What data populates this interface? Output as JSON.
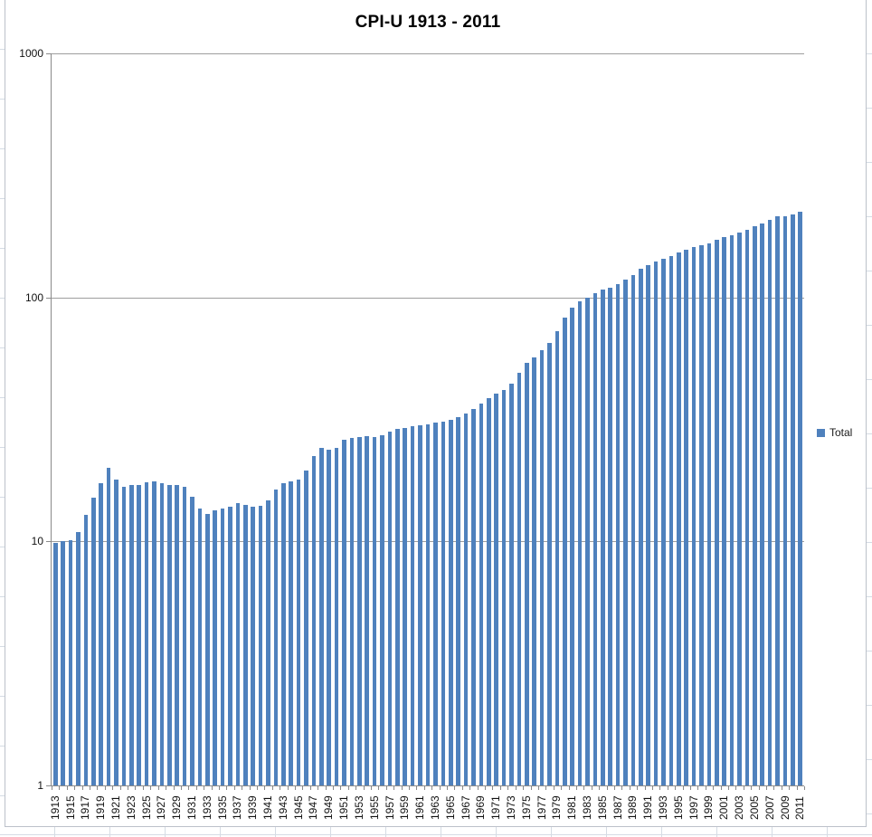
{
  "chart_data": {
    "type": "bar",
    "title": "CPI-U 1913 - 2011",
    "yscale": "log",
    "ylim": [
      1,
      1000
    ],
    "yticks": [
      1,
      10,
      100,
      1000
    ],
    "grid": true,
    "legend_position": "right",
    "bar_color": "#4F81BD",
    "xtick_label_step": 2,
    "categories": [
      1913,
      1914,
      1915,
      1916,
      1917,
      1918,
      1919,
      1920,
      1921,
      1922,
      1923,
      1924,
      1925,
      1926,
      1927,
      1928,
      1929,
      1930,
      1931,
      1932,
      1933,
      1934,
      1935,
      1936,
      1937,
      1938,
      1939,
      1940,
      1941,
      1942,
      1943,
      1944,
      1945,
      1946,
      1947,
      1948,
      1949,
      1950,
      1951,
      1952,
      1953,
      1954,
      1955,
      1956,
      1957,
      1958,
      1959,
      1960,
      1961,
      1962,
      1963,
      1964,
      1965,
      1966,
      1967,
      1968,
      1969,
      1970,
      1971,
      1972,
      1973,
      1974,
      1975,
      1976,
      1977,
      1978,
      1979,
      1980,
      1981,
      1982,
      1983,
      1984,
      1985,
      1986,
      1987,
      1988,
      1989,
      1990,
      1991,
      1992,
      1993,
      1994,
      1995,
      1996,
      1997,
      1998,
      1999,
      2000,
      2001,
      2002,
      2003,
      2004,
      2005,
      2006,
      2007,
      2008,
      2009,
      2010,
      2011
    ],
    "series": [
      {
        "name": "Total",
        "values": [
          9.9,
          10.0,
          10.1,
          10.9,
          12.8,
          15.1,
          17.3,
          20.0,
          17.9,
          16.8,
          17.1,
          17.1,
          17.5,
          17.7,
          17.4,
          17.1,
          17.1,
          16.7,
          15.2,
          13.7,
          13.0,
          13.4,
          13.7,
          13.9,
          14.4,
          14.1,
          13.9,
          14.0,
          14.7,
          16.3,
          17.3,
          17.6,
          18.0,
          19.5,
          22.3,
          24.1,
          23.8,
          24.1,
          26.0,
          26.5,
          26.7,
          26.9,
          26.8,
          27.2,
          28.1,
          28.9,
          29.1,
          29.6,
          29.9,
          30.2,
          30.6,
          31.0,
          31.5,
          32.4,
          33.4,
          34.8,
          36.7,
          38.8,
          40.5,
          41.8,
          44.4,
          49.3,
          53.8,
          56.9,
          60.6,
          65.2,
          72.6,
          82.4,
          90.9,
          96.5,
          99.6,
          103.9,
          107.6,
          109.6,
          113.6,
          118.3,
          124.0,
          130.7,
          136.2,
          140.3,
          144.5,
          148.2,
          152.4,
          156.9,
          160.5,
          163.0,
          166.6,
          172.2,
          177.1,
          179.9,
          184.0,
          188.9,
          195.3,
          201.6,
          207.3,
          215.3,
          214.5,
          218.1,
          224.9
        ]
      }
    ]
  },
  "colors": {
    "bar": "#4F81BD",
    "gridline": "#9d9d9d",
    "axis": "#8a8a8a",
    "chart_border": "#bcc1ca",
    "sheet_gridline": "#d5dce4",
    "text": "#111111"
  }
}
